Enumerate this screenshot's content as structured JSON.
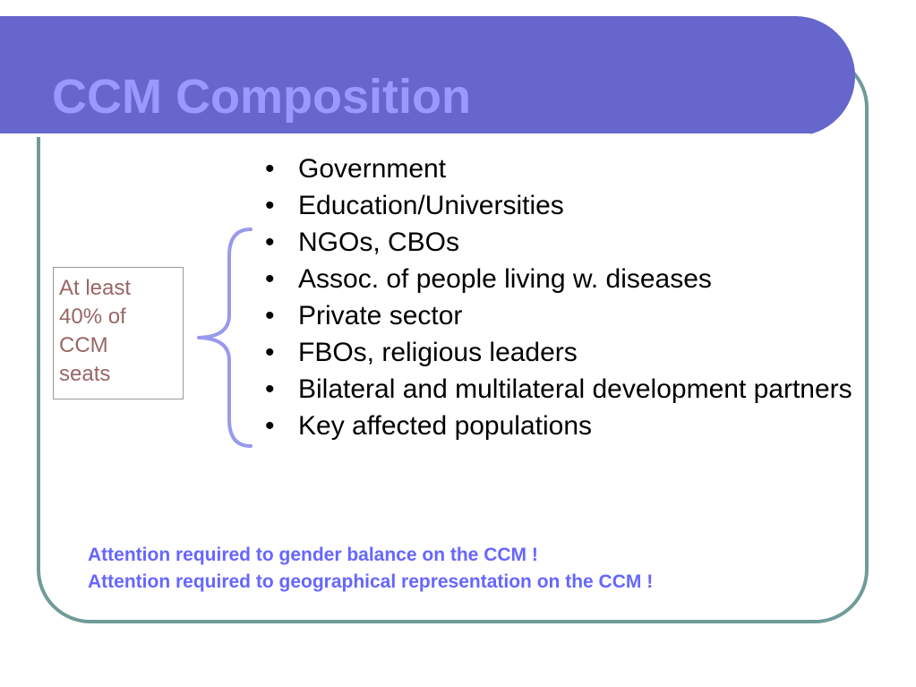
{
  "slide": {
    "title": "CCM Composition",
    "seats_note": "At least 40% of CCM seats",
    "seats_lines": [
      "At least",
      "40% of",
      "CCM",
      "seats"
    ],
    "bullets": [
      "Government",
      "Education/Universities",
      "NGOs, CBOs",
      "Assoc. of people living w. diseases",
      "Private sector",
      "FBOs, religious leaders",
      "Bilateral and multilateral development partners",
      "Key affected populations"
    ],
    "notes": [
      "Attention required to gender balance on the CCM !",
      "Attention required to geographical representation on the CCM !"
    ]
  },
  "colors": {
    "title_band": "#6666cc",
    "title_text": "#9999ff",
    "frame_border": "#6f9b98",
    "brace": "#9999ee",
    "seats_text": "#996666",
    "notes_text": "#6666ff"
  }
}
